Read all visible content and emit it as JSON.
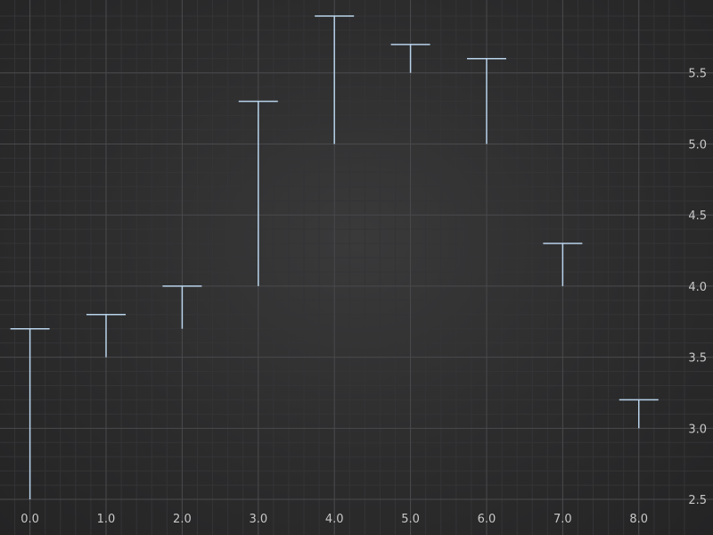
{
  "chart_data": {
    "type": "error-bar",
    "title": "",
    "xlabel": "",
    "ylabel": "",
    "x": [
      0,
      1,
      2,
      3,
      4,
      5,
      6,
      7,
      8
    ],
    "series": [
      {
        "low": [
          2.5,
          3.5,
          3.7,
          4.0,
          5.0,
          5.5,
          5.0,
          4.0,
          3.0
        ],
        "high": [
          3.7,
          3.8,
          4.0,
          5.3,
          5.9,
          5.7,
          5.6,
          4.3,
          3.2
        ]
      }
    ],
    "xlim": [
      -0.3,
      8.6
    ],
    "ylim": [
      2.45,
      5.95
    ],
    "x_ticks": [
      0,
      1,
      2,
      3,
      4,
      5,
      6,
      7,
      8
    ],
    "x_tick_labels": [
      "0.0",
      "1.0",
      "2.0",
      "3.0",
      "4.0",
      "5.0",
      "6.0",
      "7.0",
      "8.0"
    ],
    "y_ticks": [
      2.5,
      3.0,
      3.5,
      4.0,
      4.5,
      5.0,
      5.5
    ],
    "y_tick_labels": [
      "2.5",
      "3.0",
      "3.5",
      "4.0",
      "4.5",
      "5.0",
      "5.5"
    ],
    "y_axis_side": "right",
    "grid": true,
    "colors": {
      "bar": "#b9d3ea",
      "major_grid": "#4a4a4c",
      "minor_grid": "#343436"
    }
  }
}
